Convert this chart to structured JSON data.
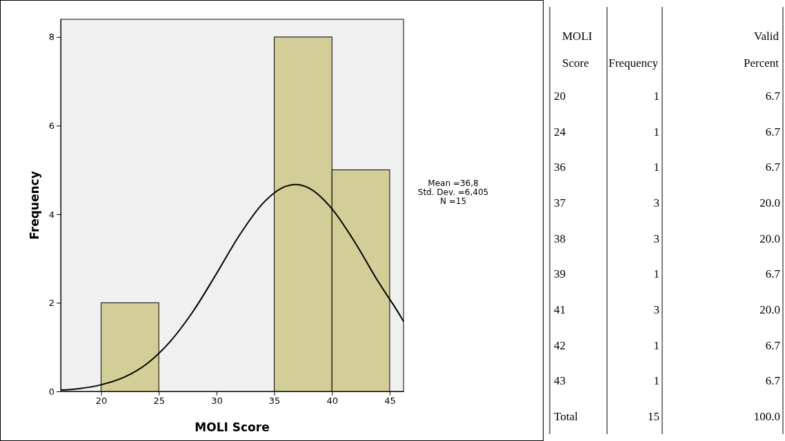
{
  "chart_data": [
    {
      "type": "histogram",
      "xlabel": "MOLI Score",
      "ylabel": "Frequency",
      "bins": [
        20,
        25,
        30,
        35,
        40,
        45
      ],
      "values": [
        2,
        0,
        0,
        8,
        5
      ],
      "color": "#d3ce97",
      "series": [
        {
          "type": "line",
          "color": "#000000",
          "x": [
            16.5,
            18,
            20,
            22,
            24,
            26,
            28,
            30,
            32,
            34,
            36,
            36.8,
            38,
            40,
            42,
            44,
            46,
            46.2
          ],
          "values": [
            0.03,
            0.06,
            0.15,
            0.32,
            0.63,
            1.13,
            1.82,
            2.66,
            3.53,
            4.24,
            4.63,
            4.67,
            4.59,
            4.12,
            3.36,
            2.48,
            1.67,
            1.58
          ]
        }
      ],
      "xlim": [
        16.5,
        46.2
      ],
      "ylim": [
        0,
        8.4
      ],
      "xticks": [
        20,
        25,
        30,
        35,
        40,
        45
      ],
      "yticks": [
        0,
        2,
        4,
        6,
        8
      ],
      "annotations": [
        "Mean =36,8",
        "Std. Dev. =6,405",
        "N =15"
      ]
    },
    {
      "type": "other",
      "xlabel": "MOLI Score",
      "categories": [
        "20",
        "24",
        "36",
        "37",
        "38",
        "39",
        "41",
        "42",
        "43",
        "Total"
      ],
      "series": [
        {
          "name": "Frequency",
          "values": [
            1,
            1,
            1,
            3,
            3,
            1,
            3,
            1,
            1,
            15
          ],
          "value_labels": [
            "1",
            "1",
            "1",
            "3",
            "3",
            "1",
            "3",
            "1",
            "1",
            "15"
          ]
        },
        {
          "name": "Valid Percent",
          "values": [
            6.7,
            6.7,
            6.7,
            20.0,
            20.0,
            6.7,
            20.0,
            6.7,
            6.7,
            100.0
          ],
          "value_labels": [
            "6.7",
            "6.7",
            "6.7",
            "20.0",
            "20.0",
            "6.7",
            "20.0",
            "6.7",
            "6.7",
            "100.0"
          ]
        }
      ]
    }
  ]
}
